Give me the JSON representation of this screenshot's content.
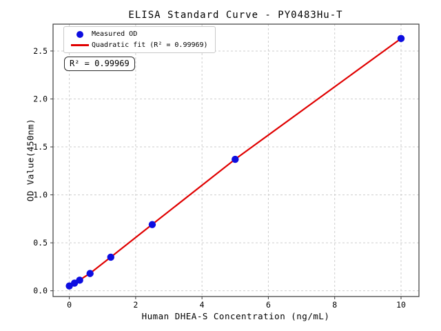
{
  "chart_data": {
    "type": "scatter",
    "title": "ELISA Standard Curve - PY0483Hu-T",
    "xlabel": "Human DHEA-S Concentration (ng/mL)",
    "ylabel": "OD Value(450nm)",
    "annotation": "R² = 0.99969",
    "legend": {
      "position": "upper-left",
      "entries": [
        {
          "label": "Measured OD",
          "marker": "dot",
          "color": "#0d0de0"
        },
        {
          "label": "Quadratic fit (R² = 0.99969)",
          "marker": "line",
          "color": "#e00000"
        }
      ]
    },
    "x": [
      0,
      0.156,
      0.312,
      0.625,
      1.25,
      2.5,
      5,
      10
    ],
    "series": [
      {
        "name": "Measured OD",
        "type": "scatter",
        "color": "#0d0de0",
        "values": [
          0.05,
          0.08,
          0.11,
          0.18,
          0.35,
          0.69,
          1.37,
          2.63
        ]
      },
      {
        "name": "Quadratic fit",
        "type": "line",
        "color": "#e00000",
        "values": [
          0.05,
          0.081,
          0.112,
          0.182,
          0.351,
          0.692,
          1.372,
          2.63
        ]
      }
    ],
    "xticks": {
      "values": [
        0,
        2,
        4,
        6,
        8,
        10
      ],
      "labels": [
        "0",
        "2",
        "4",
        "6",
        "8",
        "10"
      ]
    },
    "yticks": {
      "values": [
        0,
        0.5,
        1,
        1.5,
        2,
        2.5
      ],
      "labels": [
        "0.0",
        "0.5",
        "1.0",
        "1.5",
        "2.0",
        "2.5"
      ]
    },
    "xlim": [
      -0.49,
      10.54
    ],
    "ylim": [
      -0.06,
      2.78
    ],
    "grid": {
      "on": true,
      "style": "dashed",
      "color": "#cdcdcd"
    },
    "frame_color": "#3a3a3a",
    "background": "#ffffff"
  }
}
